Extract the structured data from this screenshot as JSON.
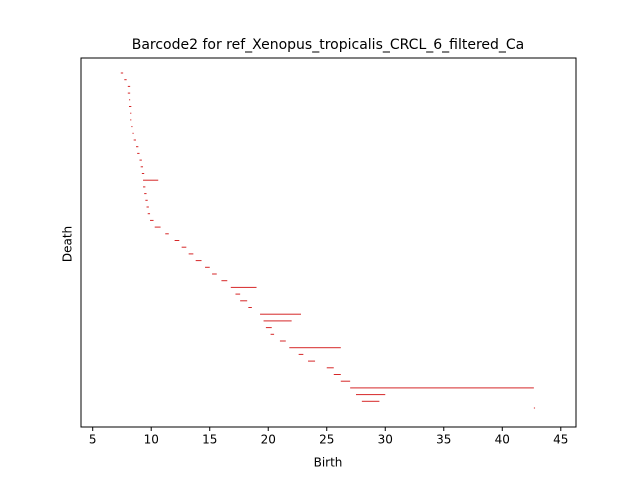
{
  "chart_data": {
    "type": "barcode",
    "title": "Barcode2 for ref_Xenopus_tropicalis_CRCL_6_filtered_Ca",
    "xlabel": "Birth",
    "ylabel": "Death",
    "color": "#d62728",
    "xlim": [
      4.0,
      46.3
    ],
    "xticks": [
      5,
      10,
      15,
      20,
      25,
      30,
      35,
      40,
      45
    ],
    "births": [
      7.4,
      7.7,
      8.0,
      8.0,
      8.1,
      8.1,
      8.2,
      8.2,
      8.3,
      8.4,
      8.5,
      8.7,
      8.8,
      9.0,
      9.1,
      9.2,
      9.3,
      9.3,
      9.4,
      9.5,
      9.6,
      9.7,
      9.9,
      10.3,
      11.2,
      12.0,
      12.6,
      13.2,
      13.8,
      14.6,
      15.2,
      16.0,
      16.8,
      17.2,
      17.6,
      18.3,
      19.3,
      19.6,
      19.8,
      20.2,
      21.0,
      21.8,
      22.6,
      23.4,
      25.0,
      25.6,
      26.2,
      27.0,
      27.5,
      28.0,
      42.7
    ],
    "deaths": [
      7.6,
      7.9,
      8.2,
      8.2,
      8.2,
      8.3,
      8.3,
      8.3,
      8.4,
      8.5,
      8.7,
      8.9,
      9.0,
      9.2,
      9.3,
      9.4,
      10.6,
      9.5,
      9.6,
      9.7,
      9.8,
      9.9,
      10.2,
      10.8,
      11.5,
      12.4,
      13.0,
      13.6,
      14.3,
      15.0,
      15.6,
      16.5,
      19.0,
      17.6,
      18.2,
      18.6,
      22.8,
      22.0,
      20.3,
      20.5,
      21.5,
      26.2,
      23.0,
      24.0,
      25.6,
      26.2,
      27.0,
      42.7,
      30.0,
      29.5,
      42.8
    ]
  }
}
